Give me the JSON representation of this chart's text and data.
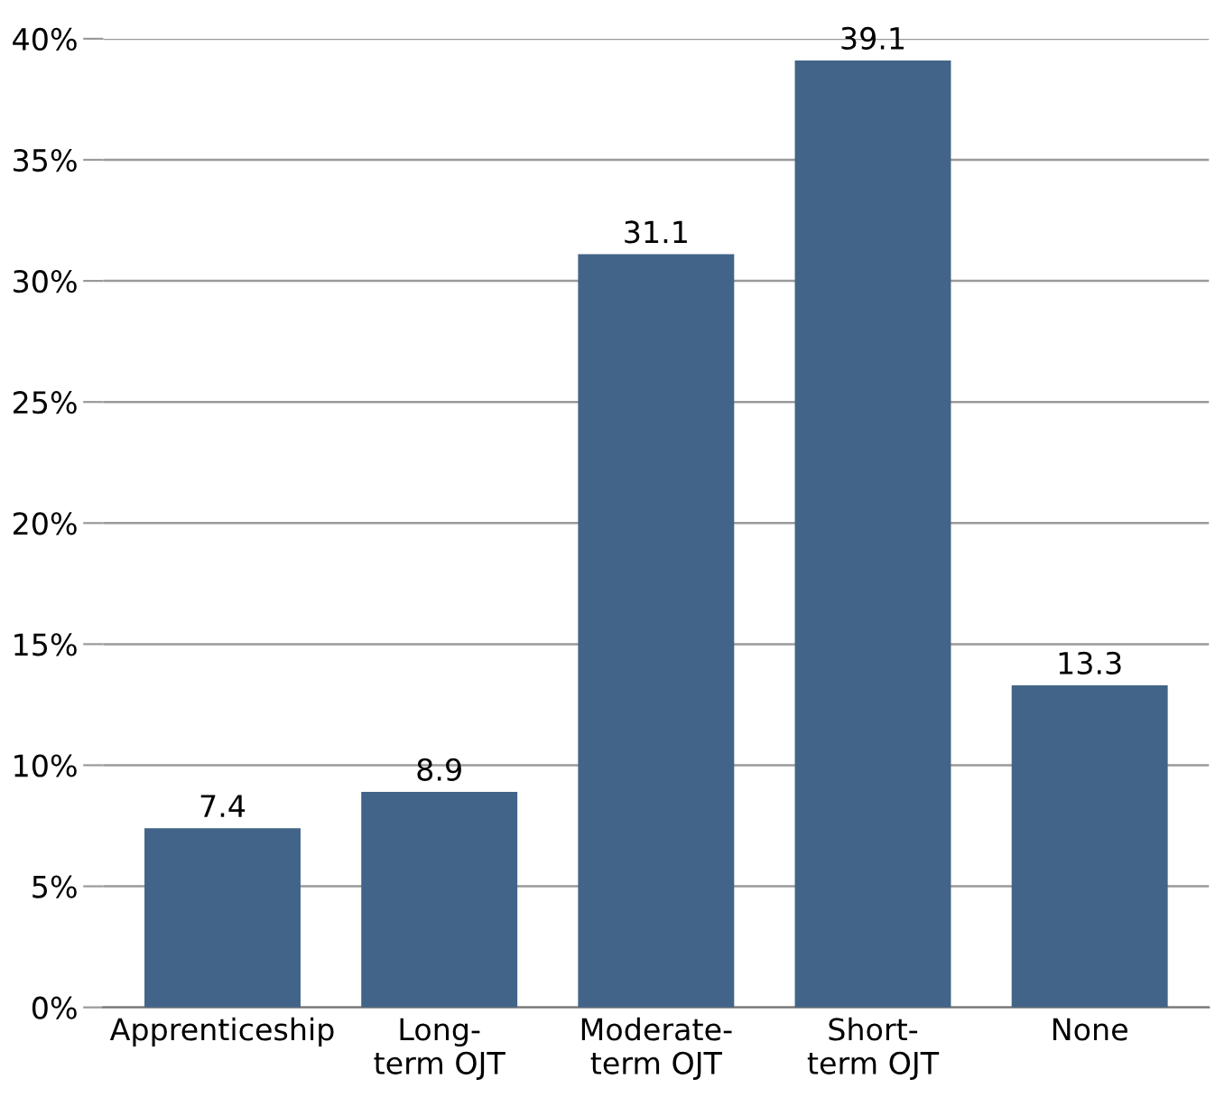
{
  "chart_data": {
    "type": "bar",
    "categories": [
      "Apprenticeship",
      "Long-\nterm OJT",
      "Moderate-\nterm OJT",
      "Short-\nterm OJT",
      "None"
    ],
    "values": [
      7.4,
      8.9,
      31.1,
      39.1,
      13.3
    ],
    "color": "#426488",
    "ylim": [
      0,
      40
    ],
    "yticks": [
      {
        "value": 0,
        "label": "0%"
      },
      {
        "value": 5,
        "label": "5%"
      },
      {
        "value": 10,
        "label": "10%"
      },
      {
        "value": 15,
        "label": "15%"
      },
      {
        "value": 20,
        "label": "20%"
      },
      {
        "value": 25,
        "label": "25%"
      },
      {
        "value": 30,
        "label": "30%"
      },
      {
        "value": 35,
        "label": "35%"
      },
      {
        "value": 40,
        "label": "40%"
      }
    ],
    "grid": "y",
    "data_labels": true
  }
}
